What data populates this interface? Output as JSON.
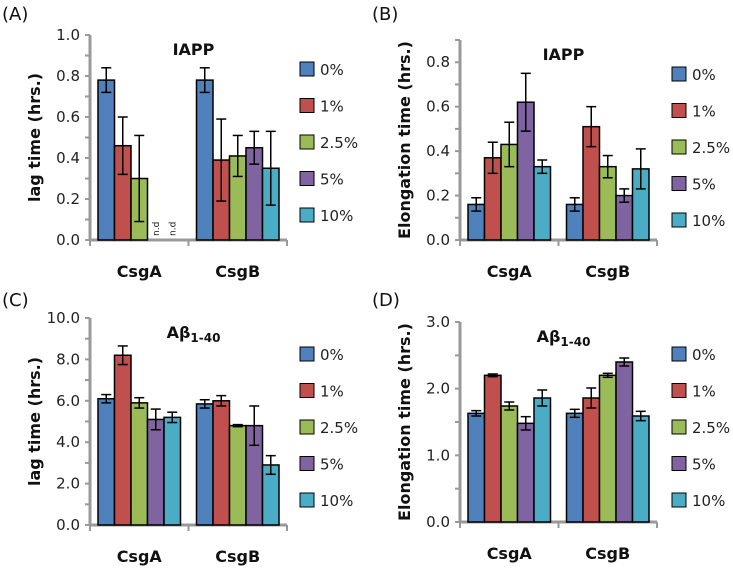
{
  "chart_data": [
    {
      "panel_label": "(A)",
      "type": "bar",
      "title": "IAPP",
      "title_sub": "",
      "ylabel": "lag time (hrs.)",
      "ylim": [
        0,
        1.0
      ],
      "yticks": [
        "0.0",
        "0.2",
        "0.4",
        "0.6",
        "0.8",
        "1.0"
      ],
      "categories": [
        "CsgA",
        "CsgB"
      ],
      "not_determined_label": "n.d",
      "series": [
        {
          "name": "0%",
          "values": [
            0.78,
            0.78
          ],
          "errors": [
            0.06,
            0.06
          ]
        },
        {
          "name": "1%",
          "values": [
            0.46,
            0.39
          ],
          "errors": [
            0.14,
            0.2
          ]
        },
        {
          "name": "2.5%",
          "values": [
            0.3,
            0.41
          ],
          "errors": [
            0.21,
            0.1
          ]
        },
        {
          "name": "5%",
          "values": [
            null,
            0.45
          ],
          "errors": [
            null,
            0.08
          ]
        },
        {
          "name": "10%",
          "values": [
            null,
            0.35
          ],
          "errors": [
            null,
            0.18
          ]
        }
      ]
    },
    {
      "panel_label": "(B)",
      "type": "bar",
      "title": "IAPP",
      "title_sub": "",
      "ylabel": "Elongation time (hrs.)",
      "ylim": [
        0,
        0.9
      ],
      "yticks": [
        "0.0",
        "0.2",
        "0.4",
        "0.6",
        "0.8"
      ],
      "categories": [
        "CsgA",
        "CsgB"
      ],
      "series": [
        {
          "name": "0%",
          "values": [
            0.16,
            0.16
          ],
          "errors": [
            0.03,
            0.03
          ]
        },
        {
          "name": "1%",
          "values": [
            0.37,
            0.51
          ],
          "errors": [
            0.07,
            0.09
          ]
        },
        {
          "name": "2.5%",
          "values": [
            0.43,
            0.33
          ],
          "errors": [
            0.1,
            0.05
          ]
        },
        {
          "name": "5%",
          "values": [
            0.62,
            0.2
          ],
          "errors": [
            0.13,
            0.03
          ]
        },
        {
          "name": "10%",
          "values": [
            0.33,
            0.32
          ],
          "errors": [
            0.03,
            0.09
          ]
        }
      ]
    },
    {
      "panel_label": "(C)",
      "type": "bar",
      "title": "Aβ",
      "title_sub": "1-40",
      "ylabel": "lag time (hrs.)",
      "ylim": [
        0,
        10.0
      ],
      "yticks": [
        "0.0",
        "2.0",
        "4.0",
        "6.0",
        "8.0",
        "10.0"
      ],
      "categories": [
        "CsgA",
        "CsgB"
      ],
      "series": [
        {
          "name": "0%",
          "values": [
            6.1,
            5.85
          ],
          "errors": [
            0.2,
            0.2
          ]
        },
        {
          "name": "1%",
          "values": [
            8.2,
            6.0
          ],
          "errors": [
            0.45,
            0.25
          ]
        },
        {
          "name": "2.5%",
          "values": [
            5.9,
            4.8
          ],
          "errors": [
            0.25,
            0.05
          ]
        },
        {
          "name": "5%",
          "values": [
            5.1,
            4.8
          ],
          "errors": [
            0.5,
            0.95
          ]
        },
        {
          "name": "10%",
          "values": [
            5.2,
            2.9
          ],
          "errors": [
            0.25,
            0.45
          ]
        }
      ]
    },
    {
      "panel_label": "(D)",
      "type": "bar",
      "title": "Aβ",
      "title_sub": "1-40",
      "ylabel": "Elongation time (hrs.)",
      "ylim": [
        0,
        3.0
      ],
      "yticks": [
        "0.0",
        "1.0",
        "2.0",
        "3.0"
      ],
      "categories": [
        "CsgA",
        "CsgB"
      ],
      "series": [
        {
          "name": "0%",
          "values": [
            1.63,
            1.63
          ],
          "errors": [
            0.04,
            0.06
          ]
        },
        {
          "name": "1%",
          "values": [
            2.2,
            1.86
          ],
          "errors": [
            0.02,
            0.15
          ]
        },
        {
          "name": "2.5%",
          "values": [
            1.74,
            2.2
          ],
          "errors": [
            0.06,
            0.03
          ]
        },
        {
          "name": "5%",
          "values": [
            1.48,
            2.4
          ],
          "errors": [
            0.1,
            0.06
          ]
        },
        {
          "name": "10%",
          "values": [
            1.86,
            1.59
          ],
          "errors": [
            0.12,
            0.07
          ]
        }
      ]
    }
  ],
  "colors": [
    "#4f81bd",
    "#c0504d",
    "#9bbb59",
    "#8064a2",
    "#4bacc6"
  ]
}
